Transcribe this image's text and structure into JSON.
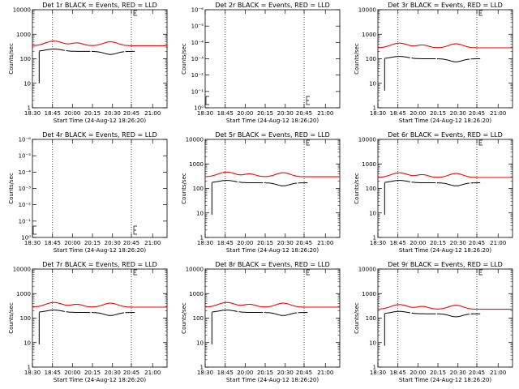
{
  "figure": {
    "x_ticks": [
      "18:30",
      "18:45",
      "20:00",
      "20:15",
      "20:30",
      "20:45",
      "21:00"
    ],
    "colors": {
      "events": "#000000",
      "lld": "#ff0000",
      "axes": "#000000"
    }
  },
  "chart_data": [
    {
      "type": "line",
      "title": "Det 1r BLACK = Events, RED = LLD",
      "ylabel": "Counts/sec",
      "xlabel": "Start Time (24-Aug-12 18:26:20)",
      "yscale": "log",
      "y_ticks": [
        "1",
        "10",
        "100",
        "1000",
        "10000"
      ],
      "x_ticks": [
        "18:30",
        "18:45",
        "20:00",
        "20:15",
        "20:30",
        "20:45",
        "21:00"
      ],
      "has_data": true,
      "events_level": 200,
      "lld_level": 340
    },
    {
      "type": "line",
      "title": "Det 2r BLACK = Events, RED = LLD",
      "ylabel": "Counts/sec",
      "xlabel": "Start Time (24-Aug-12 18:26:20)",
      "yscale": "log",
      "y_ticks": [
        "10⁰",
        "10⁻¹",
        "10⁻²",
        "10⁻³",
        "10⁻⁴",
        "10⁻⁵",
        "10⁻⁶"
      ],
      "x_ticks": [
        "18:30",
        "18:45",
        "20:00",
        "20:15",
        "20:30",
        "20:45",
        "21:00"
      ],
      "has_data": false
    },
    {
      "type": "line",
      "title": "Det 3r BLACK = Events, RED = LLD",
      "ylabel": "Counts/sec",
      "xlabel": "Start Time (24-Aug-12 18:26:20)",
      "yscale": "log",
      "y_ticks": [
        "1",
        "10",
        "100",
        "1000",
        "10000"
      ],
      "x_ticks": [
        "18:30",
        "18:45",
        "20:00",
        "20:15",
        "20:30",
        "20:45",
        "21:00"
      ],
      "has_data": true,
      "events_level": 100,
      "lld_level": 280
    },
    {
      "type": "line",
      "title": "Det 4r BLACK = Events, RED = LLD",
      "ylabel": "Counts/sec",
      "xlabel": "Start Time (24-Aug-12 18:26:20)",
      "yscale": "log",
      "y_ticks": [
        "10⁰",
        "10⁻¹",
        "10⁻²",
        "10⁻³",
        "10⁻⁴",
        "10⁻⁵",
        "10⁻⁶"
      ],
      "x_ticks": [
        "18:30",
        "18:45",
        "20:00",
        "20:15",
        "20:30",
        "20:45",
        "21:00"
      ],
      "has_data": false
    },
    {
      "type": "line",
      "title": "Det 5r BLACK = Events, RED = LLD",
      "ylabel": "Counts/sec",
      "xlabel": "Start Time (24-Aug-12 18:26:20)",
      "yscale": "log",
      "y_ticks": [
        "1",
        "10",
        "100",
        "1000",
        "10000"
      ],
      "x_ticks": [
        "18:30",
        "18:45",
        "20:00",
        "20:15",
        "20:30",
        "20:45",
        "21:00"
      ],
      "has_data": true,
      "events_level": 170,
      "lld_level": 300
    },
    {
      "type": "line",
      "title": "Det 6r BLACK = Events, RED = LLD",
      "ylabel": "Counts/sec",
      "xlabel": "Start Time (24-Aug-12 18:26:20)",
      "yscale": "log",
      "y_ticks": [
        "1",
        "10",
        "100",
        "1000",
        "10000"
      ],
      "x_ticks": [
        "18:30",
        "18:45",
        "20:00",
        "20:15",
        "20:30",
        "20:45",
        "21:00"
      ],
      "has_data": true,
      "events_level": 170,
      "lld_level": 280
    },
    {
      "type": "line",
      "title": "Det 7r BLACK = Events, RED = LLD",
      "ylabel": "Counts/sec",
      "xlabel": "Start Time (24-Aug-12 18:26:20)",
      "yscale": "log",
      "y_ticks": [
        "1",
        "10",
        "100",
        "1000",
        "10000"
      ],
      "x_ticks": [
        "18:30",
        "18:45",
        "20:00",
        "20:15",
        "20:30",
        "20:45",
        "21:00"
      ],
      "has_data": true,
      "events_level": 170,
      "lld_level": 280
    },
    {
      "type": "line",
      "title": "Det 8r BLACK = Events, RED = LLD",
      "ylabel": "Counts/sec",
      "xlabel": "Start Time (24-Aug-12 18:26:20)",
      "yscale": "log",
      "y_ticks": [
        "1",
        "10",
        "100",
        "1000",
        "10000"
      ],
      "x_ticks": [
        "18:30",
        "18:45",
        "20:00",
        "20:15",
        "20:30",
        "20:45",
        "21:00"
      ],
      "has_data": true,
      "events_level": 170,
      "lld_level": 280
    },
    {
      "type": "line",
      "title": "Det 9r BLACK = Events, RED = LLD",
      "ylabel": "Counts/sec",
      "xlabel": "Start Time (24-Aug-12 18:26:20)",
      "yscale": "log",
      "y_ticks": [
        "1",
        "10",
        "100",
        "1000",
        "10000"
      ],
      "x_ticks": [
        "18:30",
        "18:45",
        "20:00",
        "20:15",
        "20:30",
        "20:45",
        "21:00"
      ],
      "has_data": true,
      "events_level": 150,
      "lld_level": 230
    }
  ]
}
